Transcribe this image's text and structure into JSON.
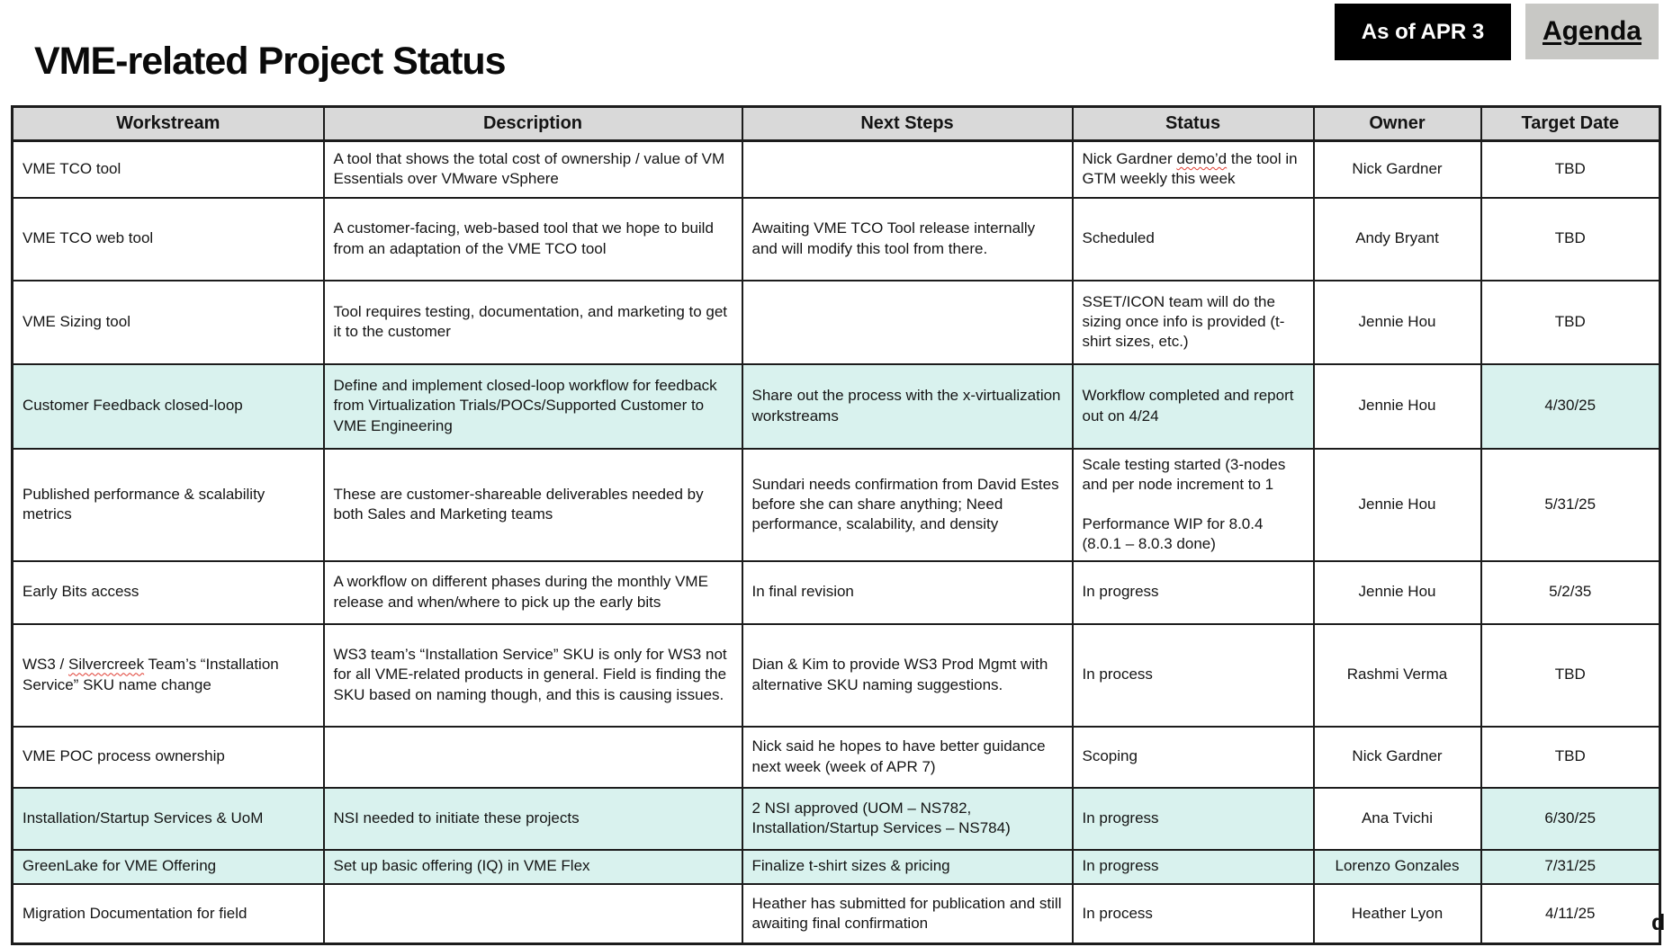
{
  "page": {
    "title": "VME-related Project Status",
    "as_of_badge": "As of APR 3",
    "agenda_link": "Agenda",
    "overflow_artifact": "d"
  },
  "colors": {
    "highlight": "#d9f2ee",
    "header_bg": "#d9d9d9",
    "badge_bg": "#000000",
    "badge_fg": "#ffffff",
    "agenda_bg": "#c8c8c5",
    "border": "#1c1c1c",
    "squiggle": "#e03c31"
  },
  "spellcheck_words": [
    "demo’d",
    "Silvercreek"
  ],
  "table": {
    "columns": [
      "Workstream",
      "Description",
      "Next Steps",
      "Status",
      "Owner",
      "Target Date"
    ],
    "rows": [
      {
        "workstream": "VME TCO tool",
        "description": "A tool that shows the total cost of ownership / value of VM Essentials over VMware vSphere",
        "next_steps": "",
        "status": "Nick Gardner demo’d the tool in GTM weekly this week",
        "owner": "Nick Gardner",
        "target_date": "TBD",
        "highlight": false,
        "owner_highlight": false
      },
      {
        "workstream": "VME TCO web tool",
        "description": "A customer-facing, web-based tool that we hope to build from an adaptation of the VME TCO tool",
        "next_steps": "Awaiting VME TCO Tool release internally and will modify this tool from there.",
        "status": "Scheduled",
        "owner": "Andy Bryant",
        "target_date": "TBD",
        "highlight": false,
        "owner_highlight": false
      },
      {
        "workstream": "VME Sizing tool",
        "description": "Tool requires testing, documentation, and marketing to get it to the customer",
        "next_steps": "",
        "status": "SSET/ICON team will do the sizing once info is provided (t-shirt sizes, etc.)",
        "owner": "Jennie Hou",
        "target_date": "TBD",
        "highlight": false,
        "owner_highlight": false
      },
      {
        "workstream": "Customer Feedback closed-loop",
        "description": "Define and implement closed-loop workflow for feedback from Virtualization Trials/POCs/Supported Customer to VME Engineering",
        "next_steps": "Share out the process with the x-virtualization workstreams",
        "status": "Workflow completed and report out on 4/24",
        "owner": "Jennie Hou",
        "target_date": "4/30/25",
        "highlight": true,
        "owner_highlight": false
      },
      {
        "workstream": "Published performance & scalability metrics",
        "description": "These are customer-shareable deliverables needed by both Sales and Marketing teams",
        "next_steps": "Sundari needs confirmation from David Estes before she can share anything; Need performance, scalability, and density",
        "status": "Scale testing started (3-nodes and per node increment to 1\n\nPerformance WIP for 8.0.4 (8.0.1 – 8.0.3 done)",
        "owner": "Jennie Hou",
        "target_date": "5/31/25",
        "highlight": false,
        "owner_highlight": false
      },
      {
        "workstream": "Early Bits access",
        "description": "A workflow on different phases during the monthly VME release and when/where to pick up the early bits",
        "next_steps": "In final revision",
        "status": "In progress",
        "owner": "Jennie Hou",
        "target_date": "5/2/35",
        "highlight": false,
        "owner_highlight": false
      },
      {
        "workstream": "WS3 / Silvercreek Team’s “Installation Service” SKU name change",
        "description": "WS3 team’s “Installation Service” SKU is only for WS3 not for all VME-related products in general. Field is finding the SKU based on naming though, and this is causing issues.",
        "next_steps": "Dian & Kim to provide WS3 Prod Mgmt with alternative SKU naming suggestions.",
        "status": "In process",
        "owner": "Rashmi Verma",
        "target_date": "TBD",
        "highlight": false,
        "owner_highlight": false
      },
      {
        "workstream": "VME POC process ownership",
        "description": "",
        "next_steps": "Nick said he hopes to have better guidance next week (week of APR 7)",
        "status": "Scoping",
        "owner": "Nick Gardner",
        "target_date": "TBD",
        "highlight": false,
        "owner_highlight": false
      },
      {
        "workstream": "Installation/Startup Services & UoM",
        "description": "NSI needed to initiate these projects",
        "next_steps": "2 NSI approved (UOM – NS782, Installation/Startup Services – NS784)",
        "status": "In progress",
        "owner": "Ana Tvichi",
        "target_date": "6/30/25",
        "highlight": true,
        "owner_highlight": false
      },
      {
        "workstream": "GreenLake for VME Offering",
        "description": "Set up basic offering (IQ) in VME Flex",
        "next_steps": "Finalize t-shirt sizes & pricing",
        "status": "In progress",
        "owner": "Lorenzo Gonzales",
        "target_date": "7/31/25",
        "highlight": true,
        "owner_highlight": true
      },
      {
        "workstream": "Migration Documentation for field",
        "description": "",
        "next_steps": "Heather has submitted for publication and still awaiting final confirmation",
        "status": "In process",
        "owner": "Heather Lyon",
        "target_date": "4/11/25",
        "highlight": false,
        "owner_highlight": false
      }
    ]
  }
}
